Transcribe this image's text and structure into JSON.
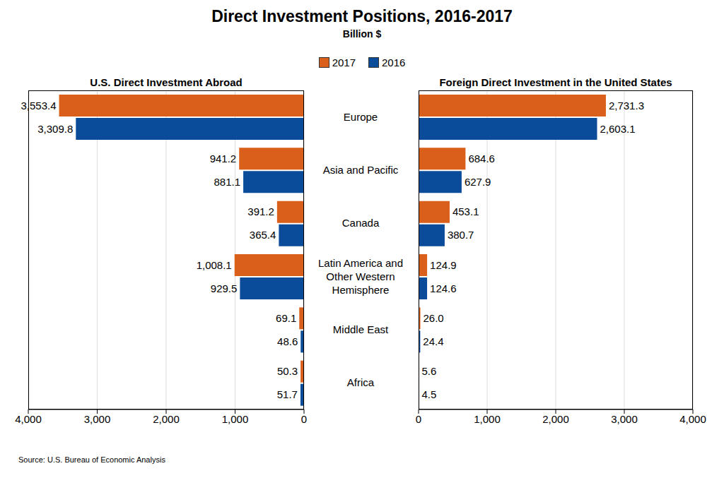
{
  "title": "Direct Investment Positions, 2016-2017",
  "subtitle": "Billion $",
  "source": "Source: U.S. Bureau of Economic Analysis",
  "chart_data": [
    {
      "type": "bar",
      "title": "U.S. Direct Investment Abroad",
      "orientation": "horizontal",
      "categories": [
        "Europe",
        "Asia and Pacific",
        "Canada",
        "Latin America and Other Western Hemisphere",
        "Middle East",
        "Africa"
      ],
      "series": [
        {
          "name": "2017",
          "color": "#d95f1b",
          "values": [
            3553.4,
            941.2,
            391.2,
            1008.1,
            69.1,
            50.3
          ],
          "value_labels": [
            "3,553.4",
            "941.2",
            "391.2",
            "1,008.1",
            "69.1",
            "50.3"
          ]
        },
        {
          "name": "2016",
          "color": "#0a4c9a",
          "values": [
            3309.8,
            881.1,
            365.4,
            929.5,
            48.6,
            51.7
          ],
          "value_labels": [
            "3,309.8",
            "881.1",
            "365.4",
            "929.5",
            "48.6",
            "51.7"
          ]
        }
      ],
      "xlim": [
        4000,
        0
      ],
      "xticks": [
        {
          "value": 4000,
          "label": "4,000"
        },
        {
          "value": 3000,
          "label": "3,000"
        },
        {
          "value": 2000,
          "label": "2,000"
        },
        {
          "value": 1000,
          "label": "1,000"
        },
        0
      ],
      "grid": true,
      "legend": "top",
      "data_labels": true
    },
    {
      "type": "bar",
      "title": "Foreign Direct Investment in the United States",
      "orientation": "horizontal",
      "categories": [
        "Europe",
        "Asia and Pacific",
        "Canada",
        "Latin America and Other Western Hemisphere",
        "Middle East",
        "Africa"
      ],
      "series": [
        {
          "name": "2017",
          "color": "#d95f1b",
          "values": [
            2731.3,
            684.6,
            453.1,
            124.9,
            26.0,
            5.6
          ],
          "value_labels": [
            "2,731.3",
            "684.6",
            "453.1",
            "124.9",
            "26.0",
            "5.6"
          ]
        },
        {
          "name": "2016",
          "color": "#0a4c9a",
          "values": [
            2603.1,
            627.9,
            380.7,
            124.6,
            24.4,
            4.5
          ],
          "value_labels": [
            "2,603.1",
            "627.9",
            "380.7",
            "124.6",
            "24.4",
            "4.5"
          ]
        }
      ],
      "xlim": [
        0,
        4000
      ],
      "xticks": [
        0,
        {
          "value": 1000,
          "label": "1,000"
        },
        {
          "value": 2000,
          "label": "2,000"
        },
        {
          "value": 3000,
          "label": "3,000"
        },
        {
          "value": 4000,
          "label": "4,000"
        }
      ],
      "grid": true,
      "legend": "top",
      "data_labels": true
    }
  ]
}
